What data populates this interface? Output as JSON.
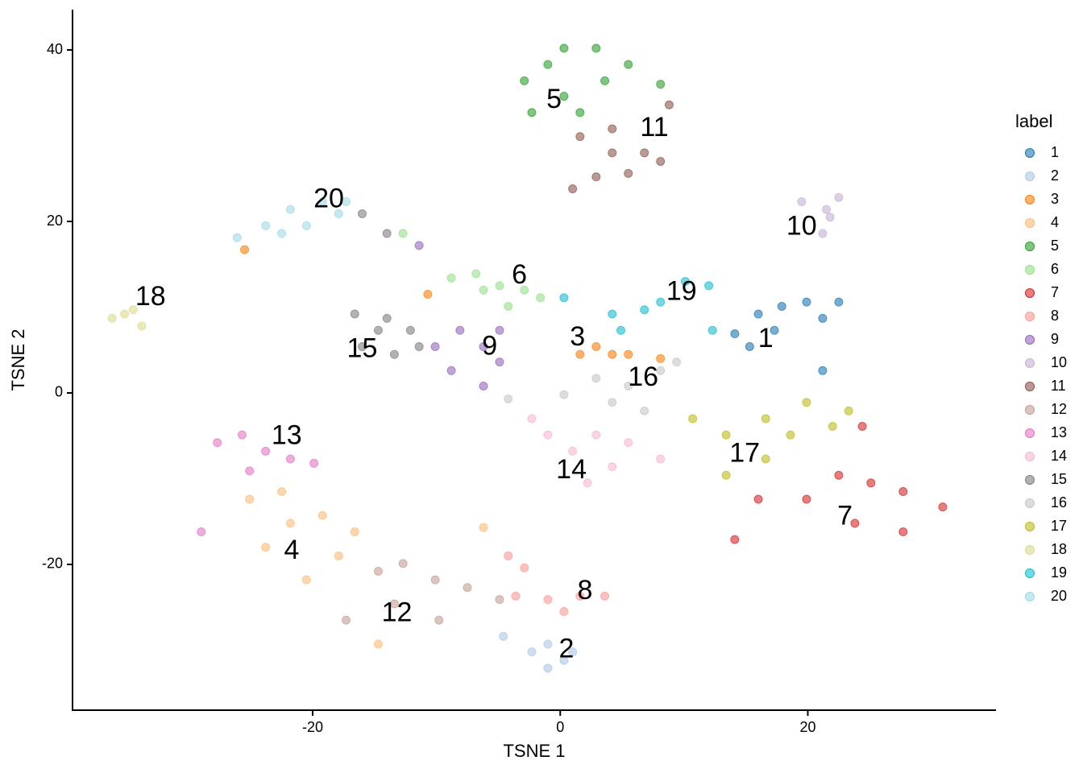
{
  "chart_data": {
    "type": "scatter",
    "x_label": "TSNE 1",
    "y_label": "TSNE 2",
    "legend_title": "label",
    "legend_position": "right",
    "xlim": [
      -39.4,
      35.2
    ],
    "ylim": [
      -37.0,
      44.7
    ],
    "xticks": [
      -20,
      0,
      20
    ],
    "yticks": [
      -20,
      0,
      20,
      40
    ],
    "series": [
      {
        "name": "1",
        "color": "#1f77b4",
        "x": [
          16,
          17.9,
          19.9,
          17.3,
          15.3,
          21.2,
          22.5,
          21.2,
          14.1
        ],
        "y": [
          9.2,
          10.1,
          10.6,
          7.3,
          5.4,
          8.7,
          10.6,
          2.6,
          6.9
        ]
      },
      {
        "name": "2",
        "color": "#aec7e8",
        "x": [
          -2.3,
          -1,
          0.3,
          1,
          -1,
          -4.6
        ],
        "y": [
          -30.2,
          -32.1,
          -31.2,
          -30.2,
          -29.3,
          -28.4
        ]
      },
      {
        "name": "3",
        "color": "#ff7f0e",
        "x": [
          1.6,
          2.9,
          4.2,
          5.5,
          8.1,
          -25.5,
          -10.7
        ],
        "y": [
          4.5,
          5.4,
          4.5,
          4.5,
          4,
          16.7,
          11.5
        ]
      },
      {
        "name": "4",
        "color": "#ffbb78",
        "x": [
          -25.1,
          -22.5,
          -19.2,
          -16.6,
          -23.8,
          -20.5,
          -17.9,
          -21.8,
          -14.7,
          -6.2
        ],
        "y": [
          -12.4,
          -11.5,
          -14.3,
          -16.2,
          -18,
          -21.8,
          -19,
          -15.2,
          -29.3,
          -15.7
        ]
      },
      {
        "name": "5",
        "color": "#2ca02c",
        "x": [
          -2.9,
          0.3,
          2.9,
          5.5,
          8.1,
          -2.3,
          0.3,
          3.6,
          -1,
          1.6
        ],
        "y": [
          36.4,
          40.2,
          40.2,
          38.3,
          36,
          32.7,
          34.6,
          36.4,
          38.3,
          32.7
        ]
      },
      {
        "name": "6",
        "color": "#98df8a",
        "x": [
          -8.8,
          -6.8,
          -4.9,
          -2.9,
          -1.6,
          -6.2,
          -4.2,
          -12.7
        ],
        "y": [
          13.4,
          13.9,
          12.5,
          12,
          11.1,
          12,
          10.1,
          18.6
        ]
      },
      {
        "name": "7",
        "color": "#d62728",
        "x": [
          16,
          19.9,
          22.5,
          25.1,
          27.7,
          30.9,
          23.8,
          27.7,
          24.4,
          14.1
        ],
        "y": [
          -12.4,
          -12.4,
          -9.6,
          -10.5,
          -11.5,
          -13.3,
          -15.2,
          -16.2,
          -3.9,
          -17.1
        ]
      },
      {
        "name": "8",
        "color": "#ff9896",
        "x": [
          -3.6,
          -1,
          1.6,
          3.6,
          -2.9,
          0.3,
          -4.2
        ],
        "y": [
          -23.7,
          -24.1,
          -23.7,
          -23.7,
          -20.4,
          -25.5,
          -19
        ]
      },
      {
        "name": "9",
        "color": "#9467bd",
        "x": [
          -10.1,
          -8.1,
          -6.2,
          -4.9,
          -8.8,
          -6.2,
          -4.9,
          -11.4
        ],
        "y": [
          5.4,
          7.3,
          5.4,
          3.6,
          2.6,
          0.8,
          7.3,
          17.2
        ]
      },
      {
        "name": "10",
        "color": "#c5b0d5",
        "x": [
          19.5,
          21.5,
          22.5,
          21.8,
          21.2
        ],
        "y": [
          22.3,
          21.4,
          22.8,
          20.5,
          18.6
        ]
      },
      {
        "name": "11",
        "color": "#8c564b",
        "x": [
          1.6,
          4.2,
          6.8,
          8.8,
          5.5,
          2.9,
          8.1,
          4.2,
          1
        ],
        "y": [
          29.9,
          30.8,
          28,
          33.6,
          25.6,
          25.2,
          27,
          28,
          23.8
        ]
      },
      {
        "name": "12",
        "color": "#c49c94",
        "x": [
          -14.7,
          -12.7,
          -10.1,
          -7.5,
          -4.9,
          -13.4,
          -9.8,
          -17.3
        ],
        "y": [
          -20.8,
          -19.9,
          -21.8,
          -22.7,
          -24.1,
          -24.6,
          -26.5,
          -26.5
        ]
      },
      {
        "name": "13",
        "color": "#e377c2",
        "x": [
          -27.7,
          -25.7,
          -23.8,
          -21.8,
          -19.9,
          -25.1,
          -29
        ],
        "y": [
          -5.8,
          -4.9,
          -6.8,
          -7.7,
          -8.2,
          -9.1,
          -16.2
        ]
      },
      {
        "name": "14",
        "color": "#f7b6d2",
        "x": [
          -1,
          1,
          2.9,
          4.2,
          2.2,
          5.5,
          -2.3,
          8.1
        ],
        "y": [
          -4.9,
          -6.8,
          -4.9,
          -8.6,
          -10.5,
          -5.8,
          -3,
          -7.7
        ]
      },
      {
        "name": "15",
        "color": "#7f7f7f",
        "x": [
          -16.6,
          -14,
          -12.1,
          -16,
          -13.4,
          -14.7,
          -11.4,
          -16,
          -14
        ],
        "y": [
          9.2,
          8.7,
          7.3,
          5.4,
          4.5,
          7.3,
          5.4,
          20.9,
          18.6
        ]
      },
      {
        "name": "16",
        "color": "#c7c7c7",
        "x": [
          0.3,
          2.9,
          5.5,
          8.1,
          9.4,
          6.8,
          4.2,
          -4.2
        ],
        "y": [
          -0.2,
          1.7,
          0.8,
          2.6,
          3.6,
          -2.1,
          -1.1,
          -0.7
        ]
      },
      {
        "name": "17",
        "color": "#bcbd22",
        "x": [
          10.7,
          13.4,
          16.6,
          19.9,
          22,
          16.6,
          13.4,
          18.6,
          23.3
        ],
        "y": [
          -3,
          -4.9,
          -3,
          -1.1,
          -3.9,
          -7.7,
          -9.6,
          -4.9,
          -2.1
        ]
      },
      {
        "name": "18",
        "color": "#dbdb8d",
        "x": [
          -36.2,
          -35.2,
          -34.5,
          -33.8
        ],
        "y": [
          8.7,
          9.2,
          9.7,
          7.8
        ]
      },
      {
        "name": "19",
        "color": "#17becf",
        "x": [
          0.3,
          4.2,
          6.8,
          8.1,
          10.1,
          12,
          12.3,
          4.9
        ],
        "y": [
          11.1,
          9.2,
          9.7,
          10.6,
          13,
          12.5,
          7.3,
          7.3
        ]
      },
      {
        "name": "20",
        "color": "#9edae5",
        "x": [
          -26.1,
          -23.8,
          -21.8,
          -19.2,
          -20.5,
          -17.9,
          -22.5,
          -17.3
        ],
        "y": [
          18.1,
          19.5,
          21.4,
          22.3,
          19.5,
          20.9,
          18.6,
          22.3
        ]
      }
    ],
    "annotations": [
      {
        "text": "1",
        "x": 16.6,
        "y": 6.2
      },
      {
        "text": "2",
        "x": 0.5,
        "y": -30
      },
      {
        "text": "3",
        "x": 1.4,
        "y": 6.4
      },
      {
        "text": "4",
        "x": -21.7,
        "y": -18.5
      },
      {
        "text": "5",
        "x": -0.5,
        "y": 34.1
      },
      {
        "text": "6",
        "x": -3.3,
        "y": 13.6
      },
      {
        "text": "7",
        "x": 23,
        "y": -14.5
      },
      {
        "text": "8",
        "x": 2,
        "y": -23.2
      },
      {
        "text": "9",
        "x": -5.7,
        "y": 5.3
      },
      {
        "text": "10",
        "x": 19.5,
        "y": 19.3
      },
      {
        "text": "11",
        "x": 7.6,
        "y": 30.8
      },
      {
        "text": "12",
        "x": -13.2,
        "y": -25.8
      },
      {
        "text": "13",
        "x": -22.1,
        "y": -5.1
      },
      {
        "text": "14",
        "x": 0.9,
        "y": -9.1
      },
      {
        "text": "15",
        "x": -16,
        "y": 5
      },
      {
        "text": "16",
        "x": 6.7,
        "y": 1.7
      },
      {
        "text": "17",
        "x": 14.9,
        "y": -7.2
      },
      {
        "text": "18",
        "x": -33.1,
        "y": 11.1
      },
      {
        "text": "19",
        "x": 9.8,
        "y": 11.7
      },
      {
        "text": "20",
        "x": -18.7,
        "y": 22.5
      }
    ]
  }
}
